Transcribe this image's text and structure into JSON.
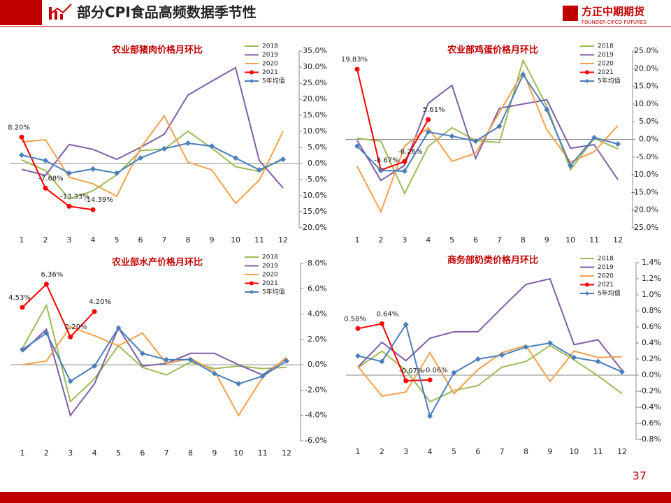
{
  "header": {
    "title": "部分CPI食品高频数据季节性",
    "logo": "方正中期期货",
    "logo_sub": "FOUNDER CIFCO FUTURES"
  },
  "page_number": "37",
  "chart_data": [
    {
      "type": "line",
      "title": "农业部猪肉价格月环比",
      "categories": [
        "1",
        "2",
        "3",
        "4",
        "5",
        "6",
        "7",
        "8",
        "9",
        "10",
        "11",
        "12"
      ],
      "series": [
        {
          "name": "2018",
          "color": "#9bbb59",
          "values": [
            1.1,
            -2.2,
            -11,
            -8.5,
            -3.5,
            4,
            4.5,
            10,
            4.8,
            -1,
            -2.5,
            1.7
          ]
        },
        {
          "name": "2019",
          "color": "#7f5fa8",
          "values": [
            -1.8,
            -3.7,
            5.9,
            4.4,
            1.3,
            5,
            9.1,
            21.3,
            25.6,
            29.8,
            0.9,
            -7.6
          ]
        },
        {
          "name": "2020",
          "color": "#f5a04b",
          "values": [
            6.7,
            7.4,
            -4.3,
            -6.3,
            -10.2,
            4.8,
            14.8,
            0.4,
            -2,
            -12.4,
            -5.2,
            10
          ]
        },
        {
          "name": "2021",
          "color": "#ff0000",
          "marker": "circle",
          "values": [
            8.2,
            -7.68,
            -13.33,
            -14.39,
            null,
            null,
            null,
            null,
            null,
            null,
            null,
            null
          ],
          "value_labels": [
            "8.20%",
            "-7.68%",
            "-13.33%",
            "-14.39%",
            null,
            null,
            null,
            null,
            null,
            null,
            null,
            null
          ]
        },
        {
          "name": "5年均值",
          "color": "#4a7ebb",
          "marker": "diamond",
          "values": [
            2.6,
            0.9,
            -3,
            -1.7,
            -3,
            1.7,
            4.6,
            6.3,
            5.4,
            1.7,
            -2,
            1.3
          ]
        }
      ],
      "ylim": [
        -20,
        35
      ],
      "yticks": [
        {
          "value": 35,
          "label": "35.0%"
        },
        {
          "value": 30,
          "label": "30.0%"
        },
        {
          "value": 25,
          "label": "25.0%"
        },
        {
          "value": 20,
          "label": "20.0%"
        },
        {
          "value": 15,
          "label": "15.0%"
        },
        {
          "value": 10,
          "label": "10.0%"
        },
        {
          "value": 5,
          "label": "5.0%"
        },
        {
          "value": 0,
          "label": "0.0%"
        },
        {
          "value": -5,
          "label": "-5.0%"
        },
        {
          "value": -10,
          "label": "-10.0%"
        },
        {
          "value": -15,
          "label": "-15.0%"
        },
        {
          "value": -20,
          "label": "-20.0%"
        }
      ]
    },
    {
      "type": "line",
      "title": "农业部鸡蛋价格月环比",
      "categories": [
        "1",
        "2",
        "3",
        "4",
        "5",
        "6",
        "7",
        "8",
        "9",
        "10",
        "11",
        "12"
      ],
      "series": [
        {
          "name": "2018",
          "color": "#9bbb59",
          "values": [
            0.3,
            -0.5,
            -15.3,
            -2,
            3.3,
            -0.3,
            -0.9,
            22.4,
            9.4,
            -8.6,
            0.3,
            -2.7
          ]
        },
        {
          "name": "2019",
          "color": "#7f5fa8",
          "values": [
            -0.3,
            -11.6,
            -7.4,
            10.2,
            15.3,
            -5.4,
            8.8,
            10,
            11.2,
            -2.5,
            -1.5,
            -11.4
          ]
        },
        {
          "name": "2020",
          "color": "#f5a04b",
          "values": [
            -7.6,
            -20.5,
            -1.9,
            3.3,
            -6.2,
            -3.9,
            7.6,
            19.1,
            2.7,
            -6.4,
            -3.5,
            3.9
          ]
        },
        {
          "name": "2021",
          "color": "#ff0000",
          "marker": "circle",
          "values": [
            19.83,
            -8.67,
            -6.26,
            5.61,
            null,
            null,
            null,
            null,
            null,
            null,
            null,
            null
          ],
          "value_labels": [
            "19.83%",
            "-8.67%",
            "-6.26%",
            "5.61%",
            null,
            null,
            null,
            null,
            null,
            null,
            null,
            null
          ]
        },
        {
          "name": "5年均值",
          "color": "#4a7ebb",
          "marker": "diamond",
          "values": [
            -1.9,
            -8.8,
            -9,
            2.1,
            0.9,
            -0.5,
            3.7,
            18.3,
            8.4,
            -7.4,
            0.5,
            -1.3
          ]
        }
      ],
      "ylim": [
        -25,
        25
      ],
      "yticks": [
        {
          "value": 25,
          "label": "25.0%"
        },
        {
          "value": 20,
          "label": "20.0%"
        },
        {
          "value": 15,
          "label": "15.0%"
        },
        {
          "value": 10,
          "label": "10.0%"
        },
        {
          "value": 5,
          "label": "5.0%"
        },
        {
          "value": 0,
          "label": "0.0%"
        },
        {
          "value": -5,
          "label": "-5.0%"
        },
        {
          "value": -10,
          "label": "-10.0%"
        },
        {
          "value": -15,
          "label": "-15.0%"
        },
        {
          "value": -20,
          "label": "-20.0%"
        },
        {
          "value": -25,
          "label": "-25.0%"
        }
      ]
    },
    {
      "type": "line",
      "title": "农业部水产价格月环比",
      "categories": [
        "1",
        "2",
        "3",
        "4",
        "5",
        "6",
        "7",
        "8",
        "9",
        "10",
        "11",
        "12"
      ],
      "series": [
        {
          "name": "2018",
          "color": "#9bbb59",
          "values": [
            1.3,
            4.7,
            -2.9,
            -1.1,
            1.5,
            -0.2,
            -0.8,
            0.2,
            -0.3,
            -0.1,
            -0.3,
            -0.2
          ]
        },
        {
          "name": "2019",
          "color": "#7f5fa8",
          "values": [
            1,
            2.8,
            -4,
            -1.5,
            2.9,
            -0.1,
            0.1,
            0.9,
            0.9,
            0,
            -0.8,
            0.5
          ]
        },
        {
          "name": "2020",
          "color": "#f5a04b",
          "values": [
            0,
            0.3,
            3,
            2.3,
            1.5,
            2.5,
            0.1,
            0.5,
            -0.5,
            -4,
            -1,
            0.6
          ]
        },
        {
          "name": "2021",
          "color": "#ff0000",
          "marker": "circle",
          "values": [
            4.53,
            6.36,
            2.2,
            4.2,
            null,
            null,
            null,
            null,
            null,
            null,
            null,
            null
          ],
          "value_labels": [
            "4.53%",
            "6.36%",
            "2.20%",
            "4.20%",
            null,
            null,
            null,
            null,
            null,
            null,
            null,
            null
          ]
        },
        {
          "name": "5年均值",
          "color": "#4a7ebb",
          "marker": "diamond",
          "values": [
            1.2,
            2.5,
            -1.3,
            -0.1,
            2.9,
            0.9,
            0.4,
            0.4,
            -0.7,
            -1.5,
            -0.9,
            0.3
          ]
        }
      ],
      "ylim": [
        -6,
        8
      ],
      "yticks": [
        {
          "value": 8,
          "label": "8.0%"
        },
        {
          "value": 6,
          "label": "6.0%"
        },
        {
          "value": 4,
          "label": "4.0%"
        },
        {
          "value": 2,
          "label": "2.0%"
        },
        {
          "value": 0,
          "label": "0.0%"
        },
        {
          "value": -2,
          "label": "-2.0%"
        },
        {
          "value": -4,
          "label": "-4.0%"
        },
        {
          "value": -6,
          "label": "-6.0%"
        }
      ]
    },
    {
      "type": "line",
      "title": "商务部奶类价格月环比",
      "categories": [
        "1",
        "2",
        "3",
        "4",
        "5",
        "6",
        "7",
        "8",
        "9",
        "10",
        "11",
        "12"
      ],
      "series": [
        {
          "name": "2018",
          "color": "#9bbb59",
          "values": [
            0.09,
            0.3,
            0.06,
            -0.33,
            -0.19,
            -0.13,
            0.1,
            0.17,
            0.37,
            0.19,
            -0.01,
            -0.23
          ]
        },
        {
          "name": "2019",
          "color": "#7f5fa8",
          "values": [
            0.1,
            0.41,
            0.18,
            0.46,
            0.54,
            0.54,
            0.84,
            1.13,
            1.2,
            0.38,
            0.44,
            0.06
          ]
        },
        {
          "name": "2020",
          "color": "#f5a04b",
          "values": [
            0.11,
            -0.26,
            -0.21,
            0.28,
            -0.23,
            0.07,
            0.28,
            0.37,
            -0.08,
            0.3,
            0.22,
            0.23
          ]
        },
        {
          "name": "2021",
          "color": "#ff0000",
          "marker": "circle",
          "values": [
            0.58,
            0.64,
            -0.07,
            -0.06,
            null,
            null,
            null,
            null,
            null,
            null,
            null,
            null
          ],
          "value_labels": [
            "0.58%",
            "0.64%",
            "-0.07%",
            "-0.06%",
            null,
            null,
            null,
            null,
            null,
            null,
            null,
            null
          ]
        },
        {
          "name": "5年均值",
          "color": "#4a7ebb",
          "marker": "diamond",
          "values": [
            0.24,
            0.17,
            0.63,
            -0.51,
            0.03,
            0.2,
            0.25,
            0.35,
            0.4,
            0.22,
            0.17,
            0.04
          ]
        }
      ],
      "ylim": [
        -0.8,
        1.4
      ],
      "yticks": [
        {
          "value": 1.4,
          "label": "1.4%"
        },
        {
          "value": 1.2,
          "label": "1.2%"
        },
        {
          "value": 1,
          "label": "1.0%"
        },
        {
          "value": 0.8,
          "label": "0.8%"
        },
        {
          "value": 0.6,
          "label": "0.6%"
        },
        {
          "value": 0.4,
          "label": "0.4%"
        },
        {
          "value": 0.2,
          "label": "0.2%"
        },
        {
          "value": 0,
          "label": "0.0%"
        },
        {
          "value": -0.2,
          "label": "-0.2%"
        },
        {
          "value": -0.4,
          "label": "-0.4%"
        },
        {
          "value": -0.6,
          "label": "-0.6%"
        },
        {
          "value": -0.8,
          "label": "-0.8%"
        }
      ]
    }
  ]
}
